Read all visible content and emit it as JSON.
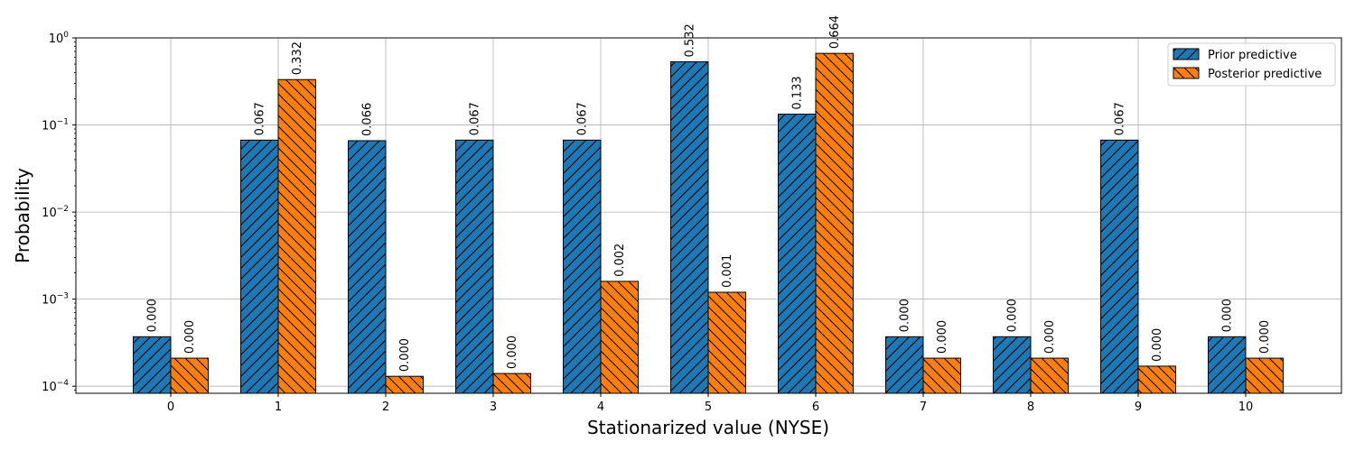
{
  "chart_data": {
    "type": "bar",
    "scale": "log",
    "categories": [
      "0",
      "1",
      "2",
      "3",
      "4",
      "5",
      "6",
      "7",
      "8",
      "9",
      "10"
    ],
    "series": [
      {
        "name": "Prior predictive",
        "color": "#1f77b4",
        "hatch": "forward-diagonal",
        "values": [
          0.00037,
          0.067,
          0.066,
          0.067,
          0.067,
          0.532,
          0.133,
          0.00037,
          0.00037,
          0.067,
          0.00037
        ],
        "labels": [
          "0.000",
          "0.067",
          "0.066",
          "0.067",
          "0.067",
          "0.532",
          "0.133",
          "0.000",
          "0.000",
          "0.067",
          "0.000"
        ]
      },
      {
        "name": "Posterior predictive",
        "color": "#ff7f0e",
        "hatch": "back-diagonal",
        "values": [
          0.00021,
          0.332,
          0.00013,
          0.00014,
          0.0016,
          0.0012,
          0.664,
          0.00021,
          0.00021,
          0.00017,
          0.00021
        ],
        "labels": [
          "0.000",
          "0.332",
          "0.000",
          "0.000",
          "0.002",
          "0.001",
          "0.664",
          "0.000",
          "0.000",
          "0.000",
          "0.000"
        ]
      }
    ],
    "xlabel": "Stationarized value (NYSE)",
    "ylabel": "Probability",
    "ylim": [
      8.3e-05,
      1
    ],
    "yticks": [
      {
        "value": 0.0001,
        "base": "10",
        "exp": "−4"
      },
      {
        "value": 0.001,
        "base": "10",
        "exp": "−3"
      },
      {
        "value": 0.01,
        "base": "10",
        "exp": "−2"
      },
      {
        "value": 0.1,
        "base": "10",
        "exp": "−1"
      },
      {
        "value": 1,
        "base": "10",
        "exp": "0"
      }
    ],
    "grid": true,
    "legend_position": "top-right"
  }
}
